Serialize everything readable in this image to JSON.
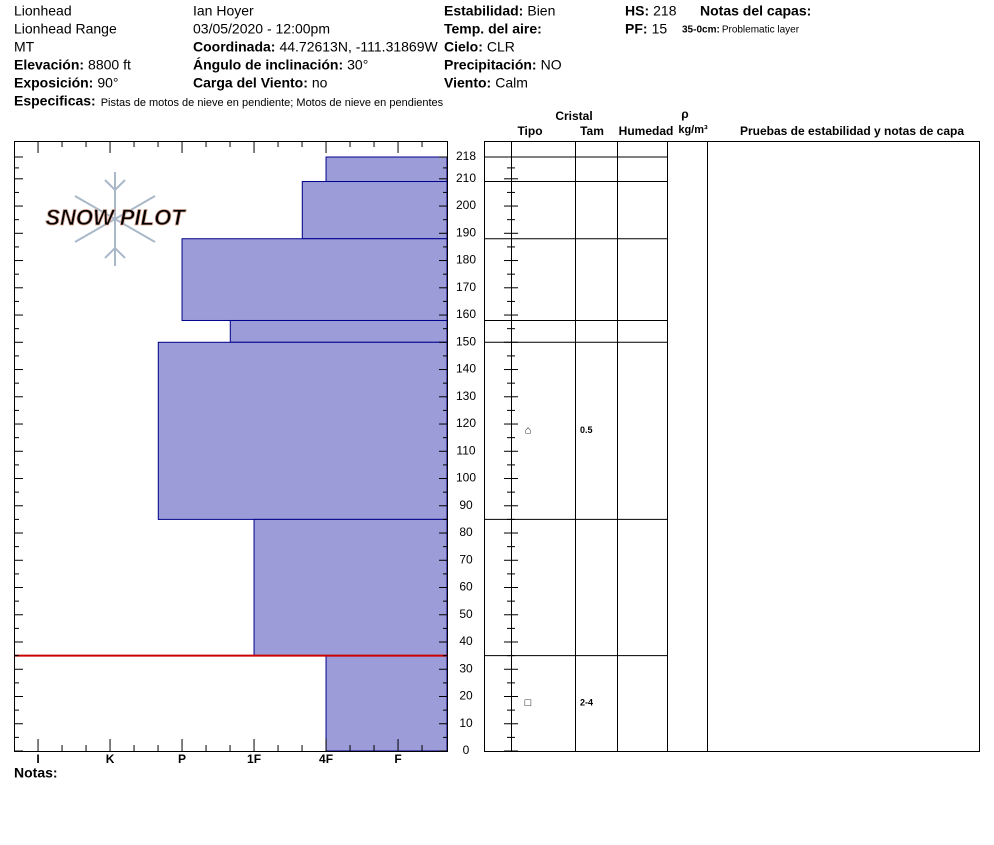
{
  "header": {
    "fields": [
      {
        "value": "Lionhead"
      },
      {
        "value": "Lionhead Range"
      },
      {
        "value": "MT"
      },
      {
        "label": "Elevación:",
        "value": "8800 ft"
      },
      {
        "label": "Exposición:",
        "value": "90°"
      },
      {
        "value": "Ian Hoyer"
      },
      {
        "value": "03/05/2020 - 12:00pm"
      },
      {
        "label": "Coordinada:",
        "value": "44.72613N, -111.31869W"
      },
      {
        "label": "Ángulo de inclinación:",
        "value": "30°"
      },
      {
        "label": "Carga del Viento:",
        "value": "no"
      },
      {
        "label": "Estabilidad:",
        "value": "Bien"
      },
      {
        "label": "Temp. del aire:"
      },
      {
        "label": "Cielo:",
        "value": "CLR"
      },
      {
        "label": "Precipitación:",
        "value": "NO"
      },
      {
        "label": "Viento:",
        "value": "Calm"
      },
      {
        "label": "HS:",
        "value": "218"
      },
      {
        "label": "PF:",
        "value": "15"
      }
    ],
    "layer_notes_title": "Notas del capas:",
    "layer_note": {
      "label": "35-0cm:",
      "value": "Problematic layer"
    },
    "specifics": {
      "label": "Especificas:",
      "value": "Pistas de motos de nieve en pendiente;  Motos de nieve en pendientes"
    },
    "notes_label": "Notas:",
    "logo": "SNOW PILOT"
  },
  "table": {
    "crystal": "Cristal",
    "type": "Tipo",
    "size": "Tam",
    "moisture": "Humedad",
    "density": "ρ",
    "density_unit": "kg/m³",
    "tests": "Pruebas de estabilidad y notas de capa"
  },
  "chart_data": {
    "type": "bar",
    "orientation": "horizontal",
    "color": "#9c9cd8",
    "edge_color": "#00008b",
    "highlight_color": "#cc0000",
    "highlight_depth": 35,
    "xlim": [
      0.32,
      6.32
    ],
    "xticks": [
      {
        "value": 6,
        "label": "I"
      },
      {
        "value": 5,
        "label": "K"
      },
      {
        "value": 4,
        "label": "P"
      },
      {
        "value": 3,
        "label": "1F"
      },
      {
        "value": 2,
        "label": "4F"
      },
      {
        "value": 1,
        "label": "F"
      }
    ],
    "ylim": [
      0,
      218
    ],
    "yticks": [
      0,
      10,
      20,
      30,
      40,
      50,
      60,
      70,
      80,
      90,
      100,
      110,
      120,
      130,
      140,
      150,
      160,
      170,
      180,
      190,
      200,
      210,
      218
    ],
    "layers": [
      {
        "top": 218,
        "bottom": 209,
        "hardness": 2
      },
      {
        "top": 209,
        "bottom": 188,
        "hardness": 2.33
      },
      {
        "top": 188,
        "bottom": 158,
        "hardness": 4
      },
      {
        "top": 158,
        "bottom": 150,
        "hardness": 3.33
      },
      {
        "top": 150,
        "bottom": 85,
        "hardness": 4.33,
        "form": "⌂",
        "size": "0.5"
      },
      {
        "top": 85,
        "bottom": 35,
        "hardness": 3
      },
      {
        "top": 35,
        "bottom": 0,
        "hardness": 2,
        "form": "□",
        "size": "2-4"
      }
    ]
  }
}
